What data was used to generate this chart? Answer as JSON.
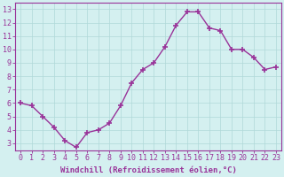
{
  "x": [
    0,
    1,
    2,
    3,
    4,
    5,
    6,
    7,
    8,
    9,
    10,
    11,
    12,
    13,
    14,
    15,
    16,
    17,
    18,
    19,
    20,
    21,
    22,
    23
  ],
  "y": [
    6.0,
    5.8,
    5.0,
    4.2,
    3.2,
    2.7,
    3.8,
    4.0,
    4.5,
    5.8,
    7.5,
    8.5,
    9.0,
    10.2,
    11.8,
    12.8,
    12.8,
    11.6,
    11.4,
    10.0,
    10.0,
    9.4,
    8.5,
    8.7
  ],
  "line_color": "#993399",
  "marker": "+",
  "marker_size": 5,
  "line_width": 1.0,
  "bg_color": "#d4f0f0",
  "grid_color": "#b0d8d8",
  "xlabel": "Windchill (Refroidissement éolien,°C)",
  "xlabel_color": "#993399",
  "tick_color": "#993399",
  "xlim": [
    -0.5,
    23.5
  ],
  "ylim": [
    2.5,
    13.5
  ],
  "yticks": [
    3,
    4,
    5,
    6,
    7,
    8,
    9,
    10,
    11,
    12,
    13
  ],
  "xticks": [
    0,
    1,
    2,
    3,
    4,
    5,
    6,
    7,
    8,
    9,
    10,
    11,
    12,
    13,
    14,
    15,
    16,
    17,
    18,
    19,
    20,
    21,
    22,
    23
  ],
  "spine_color": "#993399",
  "xlabel_fontsize": 6.5,
  "tick_fontsize": 6.0
}
